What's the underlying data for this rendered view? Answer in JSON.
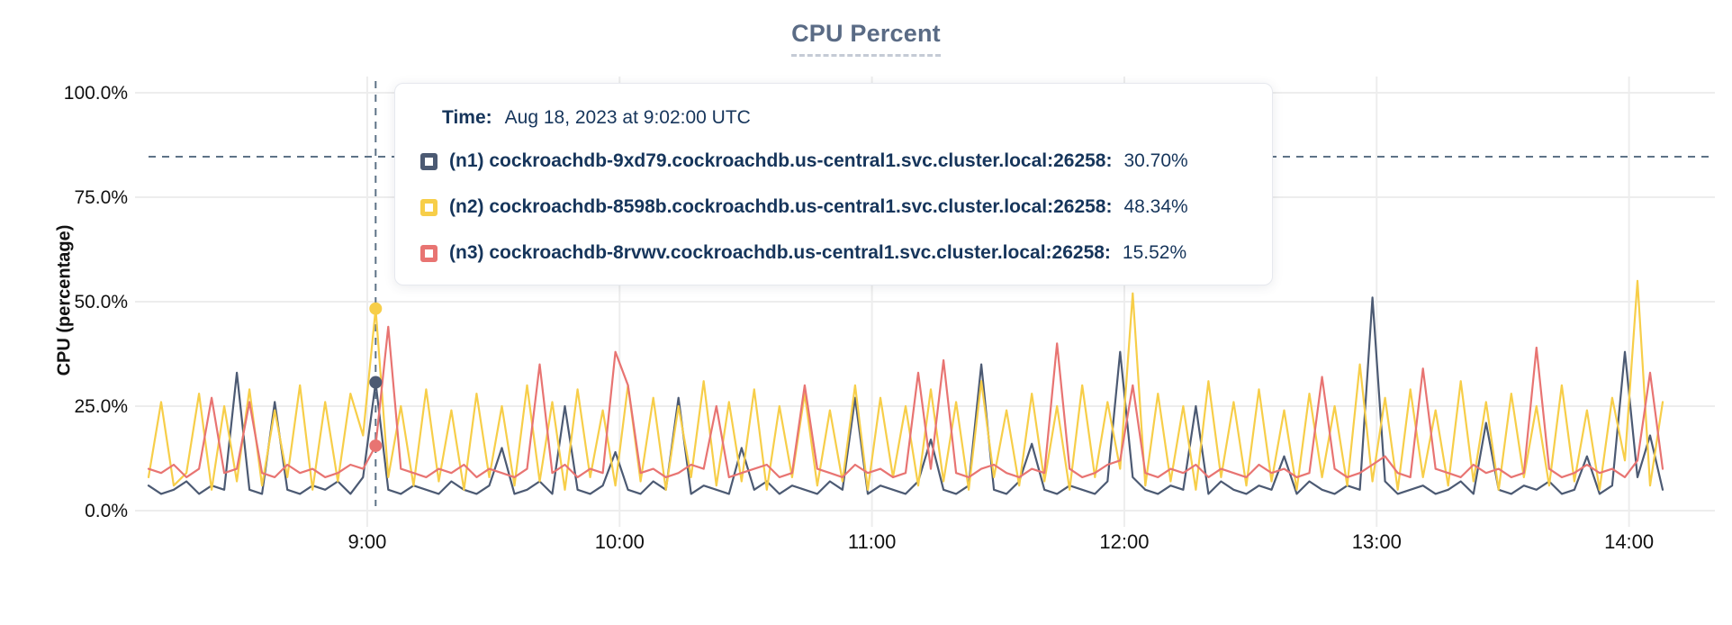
{
  "title": "CPU Percent",
  "axes": {
    "y_label": "CPU (percentage)",
    "y_ticks": [
      "0.0%",
      "25.0%",
      "50.0%",
      "75.0%",
      "100.0%"
    ],
    "x_ticks": [
      "9:00",
      "10:00",
      "11:00",
      "12:00",
      "13:00",
      "14:00"
    ]
  },
  "tooltip": {
    "time_label": "Time:",
    "time_value": "Aug 18, 2023 at 9:02:00 UTC",
    "rows": [
      {
        "id": "n1",
        "name": "(n1) cockroachdb-9xd79.cockroachdb.us-central1.svc.cluster.local:26258:",
        "value": "30.70%",
        "color": "#4c5a73"
      },
      {
        "id": "n2",
        "name": "(n2) cockroachdb-8598b.cockroachdb.us-central1.svc.cluster.local:26258:",
        "value": "48.34%",
        "color": "#f7ce49"
      },
      {
        "id": "n3",
        "name": "(n3) cockroachdb-8rvwv.cockroachdb.us-central1.svc.cluster.local:26258:",
        "value": "15.52%",
        "color": "#e87472"
      }
    ]
  },
  "colors": {
    "series_n1": "#4c5a73",
    "series_n2": "#f7ce49",
    "series_n3": "#e87472",
    "gridline": "#ededed",
    "crosshair": "#5e7387",
    "axis_text": "#111111",
    "title_text": "#5a6b85",
    "tooltip_text": "#16355b"
  },
  "chart_data": {
    "type": "line",
    "title": "CPU Percent",
    "xlabel": "",
    "ylabel": "CPU (percentage)",
    "ylim": [
      0,
      100
    ],
    "grid": true,
    "legend_position": "tooltip-overlay",
    "x_start": "8:08",
    "x_end": "14:08",
    "step_minutes": 3,
    "x_tick_labels": [
      "9:00",
      "10:00",
      "11:00",
      "12:00",
      "13:00",
      "14:00"
    ],
    "y_tick_values": [
      0,
      25,
      50,
      75,
      100
    ],
    "cursor": {
      "time": "9:02",
      "index": 18,
      "y_percent": 84.7
    },
    "series": [
      {
        "id": "n1",
        "name": "(n1) cockroachdb-9xd79.cockroachdb.us-central1.svc.cluster.local:26258",
        "color": "#4c5a73",
        "cursor_value": 30.7,
        "values": [
          6,
          4,
          5,
          7,
          4,
          6,
          5,
          33,
          5,
          4,
          26,
          5,
          4,
          6,
          5,
          7,
          4,
          8,
          30.7,
          5,
          4,
          6,
          5,
          4,
          7,
          5,
          4,
          6,
          15,
          4,
          5,
          7,
          4,
          25,
          5,
          4,
          6,
          14,
          5,
          4,
          7,
          5,
          27,
          4,
          6,
          5,
          4,
          15,
          5,
          7,
          4,
          6,
          5,
          4,
          7,
          5,
          27,
          4,
          6,
          5,
          4,
          7,
          17,
          5,
          4,
          6,
          35,
          5,
          4,
          7,
          16,
          5,
          4,
          6,
          5,
          4,
          7,
          38,
          8,
          5,
          4,
          6,
          5,
          25,
          4,
          7,
          5,
          4,
          6,
          5,
          13,
          4,
          7,
          5,
          4,
          6,
          5,
          51,
          7,
          4,
          5,
          6,
          4,
          5,
          7,
          4,
          21,
          5,
          4,
          6,
          5,
          7,
          4,
          5,
          13,
          4,
          6,
          38,
          8,
          18,
          5
        ]
      },
      {
        "id": "n2",
        "name": "(n2) cockroachdb-8598b.cockroachdb.us-central1.svc.cluster.local:26258",
        "color": "#f7ce49",
        "cursor_value": 48.34,
        "values": [
          8,
          26,
          6,
          9,
          28,
          5,
          25,
          7,
          29,
          6,
          24,
          8,
          30,
          5,
          26,
          7,
          28,
          18,
          48.34,
          8,
          25,
          6,
          29,
          7,
          24,
          5,
          28,
          8,
          25,
          6,
          30,
          7,
          26,
          5,
          29,
          8,
          24,
          6,
          30,
          7,
          27,
          5,
          25,
          8,
          31,
          6,
          26,
          7,
          29,
          5,
          25,
          8,
          28,
          6,
          24,
          7,
          30,
          5,
          27,
          8,
          25,
          6,
          29,
          7,
          26,
          5,
          31,
          8,
          24,
          6,
          28,
          7,
          25,
          5,
          30,
          8,
          26,
          10,
          52,
          6,
          28,
          7,
          25,
          5,
          31,
          8,
          26,
          6,
          29,
          7,
          24,
          5,
          28,
          8,
          25,
          6,
          35,
          7,
          27,
          5,
          29,
          8,
          24,
          6,
          31,
          7,
          26,
          5,
          28,
          8,
          25,
          6,
          30,
          7,
          24,
          5,
          27,
          12,
          55,
          6,
          26
        ]
      },
      {
        "id": "n3",
        "name": "(n3) cockroachdb-8rvwv.cockroachdb.us-central1.svc.cluster.local:26258",
        "color": "#e87472",
        "cursor_value": 15.52,
        "values": [
          10,
          9,
          11,
          8,
          10,
          27,
          9,
          10,
          26,
          9,
          8,
          11,
          9,
          10,
          8,
          9,
          11,
          10,
          15.52,
          44,
          10,
          9,
          8,
          10,
          9,
          11,
          8,
          10,
          9,
          8,
          10,
          35,
          9,
          11,
          8,
          10,
          9,
          38,
          30,
          9,
          10,
          8,
          9,
          11,
          10,
          25,
          8,
          9,
          10,
          11,
          8,
          9,
          30,
          10,
          9,
          8,
          11,
          9,
          10,
          8,
          9,
          33,
          10,
          36,
          9,
          8,
          10,
          11,
          9,
          8,
          10,
          9,
          40,
          10,
          8,
          9,
          11,
          12,
          30,
          9,
          8,
          10,
          9,
          11,
          8,
          10,
          9,
          8,
          11,
          9,
          10,
          8,
          9,
          32,
          10,
          8,
          9,
          11,
          13,
          9,
          8,
          34,
          10,
          9,
          8,
          11,
          9,
          10,
          8,
          9,
          39,
          10,
          8,
          9,
          11,
          9,
          10,
          8,
          12,
          33,
          10
        ]
      }
    ]
  }
}
